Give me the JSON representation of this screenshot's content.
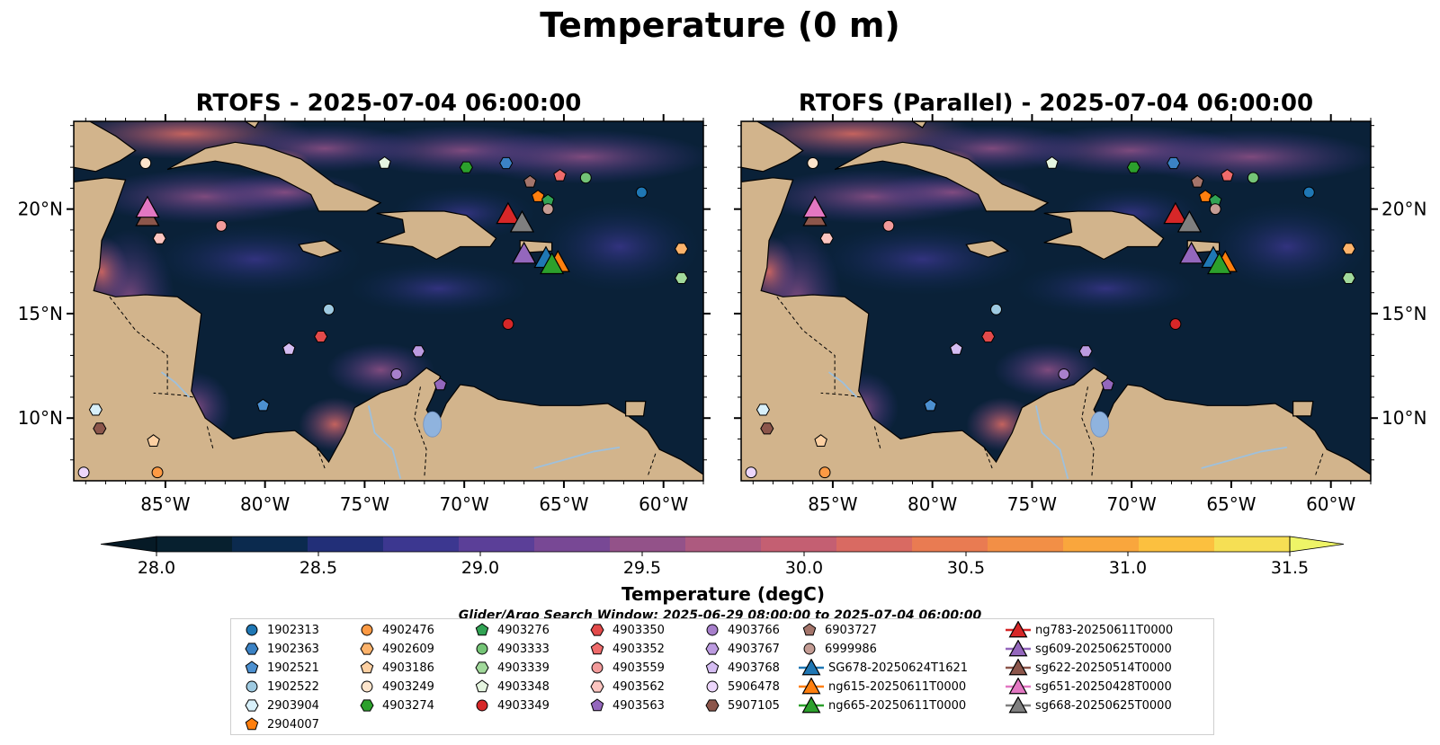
{
  "figure": {
    "title": "Temperature (0 m)"
  },
  "maps": [
    {
      "title": "RTOFS - 2025-07-04 06:00:00"
    },
    {
      "title": "RTOFS (Parallel) - 2025-07-04 06:00:00"
    }
  ],
  "axes": {
    "lon_ticks": [
      "85°W",
      "80°W",
      "75°W",
      "70°W",
      "65°W",
      "60°W"
    ],
    "lat_ticks": [
      "20°N",
      "15°N",
      "10°N"
    ]
  },
  "colorbar": {
    "label": "Temperature (degC)",
    "ticks": [
      "28.0",
      "28.5",
      "29.0",
      "29.5",
      "30.0",
      "30.5",
      "31.0",
      "31.5"
    ],
    "colors": [
      "#07202f",
      "#0b2a4e",
      "#222f78",
      "#3c3790",
      "#5b3f98",
      "#784895",
      "#935289",
      "#ad5a7f",
      "#c45f72",
      "#d96a62",
      "#e97b52",
      "#f28f46",
      "#f9a63d",
      "#fcc03f",
      "#f6df54"
    ],
    "under_color": "#061a26",
    "over_color": "#eef467"
  },
  "search_window": "Glider/Argo Search Window: 2025-06-29 08:00:00 to 2025-07-04 06:00:00",
  "colors": {
    "land": "#d2b48c",
    "lake": "#8fb3de",
    "river": "#9ec0dc",
    "ocean_base": "#0a2138"
  },
  "legend": [
    {
      "label": "1902313",
      "marker": "circle",
      "color": "#1f77b4"
    },
    {
      "label": "1902363",
      "marker": "hexagon",
      "color": "#3b82c4"
    },
    {
      "label": "1902521",
      "marker": "pentagon",
      "color": "#4c90d0"
    },
    {
      "label": "1902522",
      "marker": "circle",
      "color": "#9ecae1"
    },
    {
      "label": "2903904",
      "marker": "hexagon",
      "color": "#d8f0fa"
    },
    {
      "label": "2904007",
      "marker": "pentagon",
      "color": "#ff7f0e"
    },
    {
      "label": "4902476",
      "marker": "circle",
      "color": "#fd9a44"
    },
    {
      "label": "4902609",
      "marker": "hexagon",
      "color": "#fdb36b"
    },
    {
      "label": "4903186",
      "marker": "pentagon",
      "color": "#fdd0a2"
    },
    {
      "label": "4903249",
      "marker": "circle",
      "color": "#fde5cc"
    },
    {
      "label": "4903274",
      "marker": "hexagon",
      "color": "#2ca02c"
    },
    {
      "label": "4903276",
      "marker": "pentagon",
      "color": "#31a354"
    },
    {
      "label": "4903333",
      "marker": "circle",
      "color": "#74c476"
    },
    {
      "label": "4903339",
      "marker": "hexagon",
      "color": "#a1d99b"
    },
    {
      "label": "4903348",
      "marker": "pentagon",
      "color": "#e5f5e0"
    },
    {
      "label": "4903349",
      "marker": "circle",
      "color": "#d62728"
    },
    {
      "label": "4903350",
      "marker": "hexagon",
      "color": "#e34a4a"
    },
    {
      "label": "4903352",
      "marker": "pentagon",
      "color": "#ef6b6b"
    },
    {
      "label": "4903559",
      "marker": "circle",
      "color": "#f29a9a"
    },
    {
      "label": "4903562",
      "marker": "hexagon",
      "color": "#fcc5c0"
    },
    {
      "label": "4903563",
      "marker": "pentagon",
      "color": "#9467bd"
    },
    {
      "label": "4903766",
      "marker": "circle",
      "color": "#a77fcb"
    },
    {
      "label": "4903767",
      "marker": "hexagon",
      "color": "#bc9be0"
    },
    {
      "label": "4903768",
      "marker": "pentagon",
      "color": "#d5bdf2"
    },
    {
      "label": "5906478",
      "marker": "circle",
      "color": "#ecd6fb"
    },
    {
      "label": "5907105",
      "marker": "hexagon",
      "color": "#8c564b"
    },
    {
      "label": "6903727",
      "marker": "pentagon",
      "color": "#a4756b"
    },
    {
      "label": "6999986",
      "marker": "circle",
      "color": "#c49c94"
    },
    {
      "label": "SG678-20250624T1621",
      "marker": "triangle",
      "color": "#1f77b4"
    },
    {
      "label": "ng615-20250611T0000",
      "marker": "triangle",
      "color": "#ff7f0e"
    },
    {
      "label": "ng665-20250611T0000",
      "marker": "triangle",
      "color": "#2ca02c"
    },
    {
      "label": "ng783-20250611T0000",
      "marker": "triangle",
      "color": "#d62728"
    },
    {
      "label": "sg609-20250625T0000",
      "marker": "triangle",
      "color": "#9467bd"
    },
    {
      "label": "sg622-20250514T0000",
      "marker": "triangle",
      "color": "#8c564b"
    },
    {
      "label": "sg651-20250428T0000",
      "marker": "triangle",
      "color": "#e377c2"
    },
    {
      "label": "sg668-20250625T0000",
      "marker": "triangle",
      "color": "#7f7f7f"
    }
  ],
  "argo_positions": [
    {
      "id": "1902313",
      "lon": -61.1,
      "lat": 20.8
    },
    {
      "id": "1902363",
      "lon": -67.9,
      "lat": 22.2
    },
    {
      "id": "1902521",
      "lon": -80.1,
      "lat": 10.6
    },
    {
      "id": "1902522",
      "lon": -76.8,
      "lat": 15.2
    },
    {
      "id": "2903904",
      "lon": -88.5,
      "lat": 10.4
    },
    {
      "id": "2904007",
      "lon": -66.3,
      "lat": 20.6
    },
    {
      "id": "4902476",
      "lon": -85.4,
      "lat": 7.4
    },
    {
      "id": "4902609",
      "lon": -59.1,
      "lat": 18.1
    },
    {
      "id": "4903186",
      "lon": -85.6,
      "lat": 8.9
    },
    {
      "id": "4903249",
      "lon": -86.0,
      "lat": 22.2
    },
    {
      "id": "4903274",
      "lon": -69.9,
      "lat": 22.0
    },
    {
      "id": "4903276",
      "lon": -65.8,
      "lat": 20.4
    },
    {
      "id": "4903333",
      "lon": -63.9,
      "lat": 21.5
    },
    {
      "id": "4903339",
      "lon": -59.1,
      "lat": 16.7
    },
    {
      "id": "4903348",
      "lon": -74.0,
      "lat": 22.2
    },
    {
      "id": "4903349",
      "lon": -67.8,
      "lat": 14.5
    },
    {
      "id": "4903350",
      "lon": -77.2,
      "lat": 13.9
    },
    {
      "id": "4903352",
      "lon": -65.2,
      "lat": 21.6
    },
    {
      "id": "4903559",
      "lon": -82.2,
      "lat": 19.2
    },
    {
      "id": "4903562",
      "lon": -85.3,
      "lat": 18.6
    },
    {
      "id": "4903563",
      "lon": -71.2,
      "lat": 11.6
    },
    {
      "id": "4903766",
      "lon": -73.4,
      "lat": 12.1
    },
    {
      "id": "4903767",
      "lon": -72.3,
      "lat": 13.2
    },
    {
      "id": "4903768",
      "lon": -78.8,
      "lat": 13.3
    },
    {
      "id": "5906478",
      "lon": -89.1,
      "lat": 7.4
    },
    {
      "id": "5907105",
      "lon": -88.3,
      "lat": 9.5
    },
    {
      "id": "6903727",
      "lon": -66.7,
      "lat": 21.3
    },
    {
      "id": "6999986",
      "lon": -65.8,
      "lat": 20.0
    }
  ],
  "glider_positions": [
    {
      "id": "SG678-20250624T1621",
      "lon": -65.9,
      "lat": 17.6
    },
    {
      "id": "ng615-20250611T0000",
      "lon": -65.3,
      "lat": 17.4
    },
    {
      "id": "ng665-20250611T0000",
      "lon": -65.6,
      "lat": 17.3
    },
    {
      "id": "ng783-20250611T0000",
      "lon": -67.8,
      "lat": 19.7
    },
    {
      "id": "sg609-20250625T0000",
      "lon": -67.0,
      "lat": 17.8
    },
    {
      "id": "sg622-20250514T0000",
      "lon": -85.9,
      "lat": 19.6
    },
    {
      "id": "sg651-20250428T0000",
      "lon": -85.9,
      "lat": 20.0
    },
    {
      "id": "sg668-20250625T0000",
      "lon": -67.1,
      "lat": 19.3
    }
  ]
}
